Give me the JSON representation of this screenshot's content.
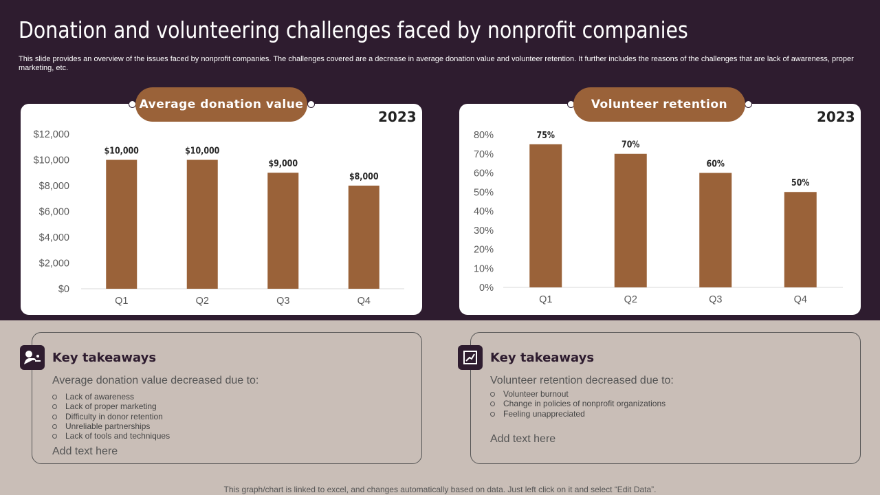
{
  "title": "Donation and volunteering challenges faced by nonprofit companies",
  "subtitle": "This slide provides an overview of the issues faced by nonprofit companies. The challenges covered are a decrease in average donation value and volunteer retention. It further includes the reasons of the challenges that are lack of awareness, proper marketing, etc.",
  "colors": {
    "background_top": "#2e1c2f",
    "background_bottom": "#c9beb7",
    "bar": "#9a6239",
    "card": "#ffffff"
  },
  "chart_data": [
    {
      "type": "bar",
      "title": "Average donation value",
      "year": "2023",
      "categories": [
        "Q1",
        "Q2",
        "Q3",
        "Q4"
      ],
      "values": [
        10000,
        10000,
        9000,
        8000
      ],
      "data_labels": [
        "$10,000",
        "$10,000",
        "$9,000",
        "$8,000"
      ],
      "ylim": [
        0,
        12000
      ],
      "yticks": [
        "$0",
        "$2,000",
        "$4,000",
        "$6,000",
        "$8,000",
        "$10,000",
        "$12,000"
      ],
      "grid": false
    },
    {
      "type": "bar",
      "title": "Volunteer retention",
      "year": "2023",
      "categories": [
        "Q1",
        "Q2",
        "Q3",
        "Q4"
      ],
      "values": [
        75,
        70,
        60,
        50
      ],
      "data_labels": [
        "75%",
        "70%",
        "60%",
        "50%"
      ],
      "ylim": [
        0,
        80
      ],
      "yticks": [
        "0%",
        "10%",
        "20%",
        "30%",
        "40%",
        "50%",
        "60%",
        "70%",
        "80%"
      ],
      "grid": false
    }
  ],
  "takeaways": [
    {
      "icon": "donation-hand-icon",
      "heading": "Key takeaways",
      "intro": "Average donation value  decreased due to:",
      "items": [
        "Lack of awareness",
        "Lack of proper marketing",
        "Difficulty in donor retention",
        "Unreliable partnerships",
        "Lack of tools and techniques"
      ],
      "add_text": "Add text here"
    },
    {
      "icon": "volunteer-chart-icon",
      "heading": "Key takeaways",
      "intro": "Volunteer  retention decreased due to:",
      "items": [
        "Volunteer burnout",
        "Change in policies of nonprofit organizations",
        "Feeling unappreciated"
      ],
      "add_text": "Add text here"
    }
  ],
  "footer": "This graph/chart is linked to excel,  and changes automatically based on data. Just left click on it and select “Edit Data”."
}
